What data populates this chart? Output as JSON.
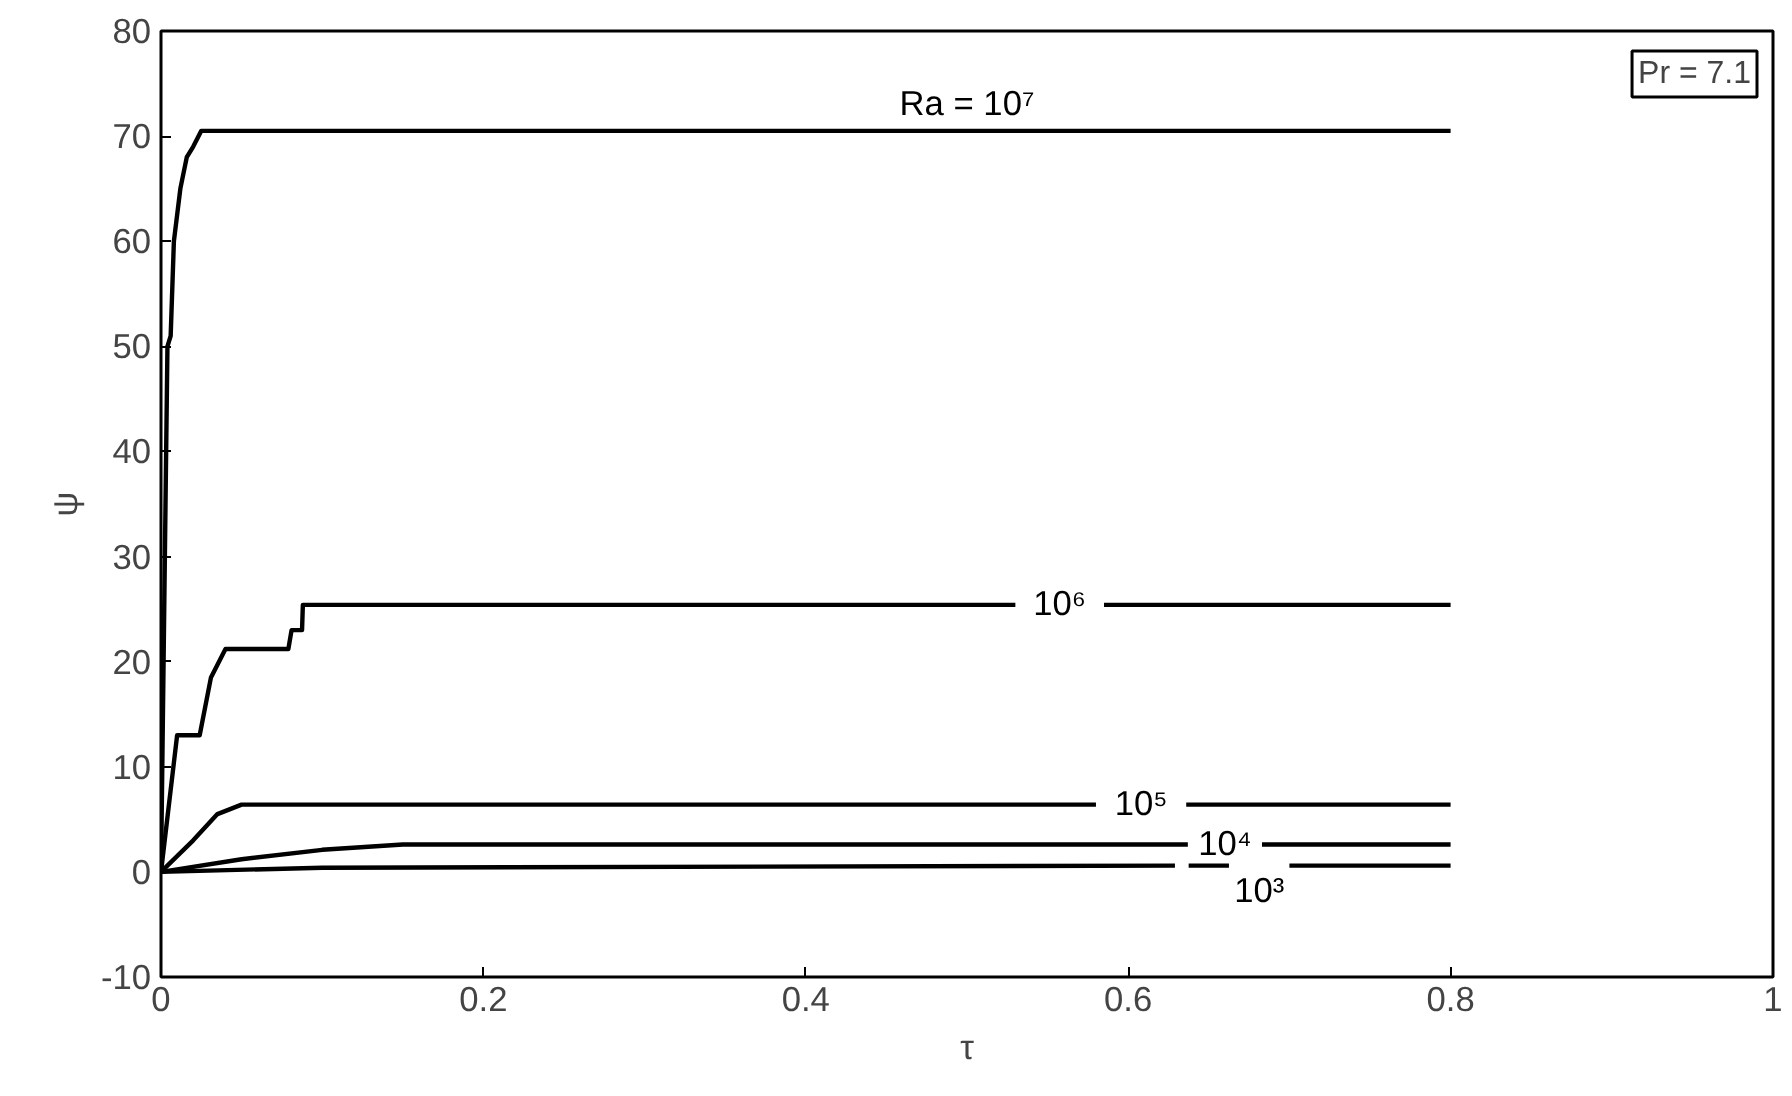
{
  "chart_data": {
    "type": "line",
    "xlabel": "τ",
    "ylabel": "ψ",
    "xlim": [
      0,
      1
    ],
    "ylim": [
      -10,
      80
    ],
    "xticks": [
      0,
      0.2,
      0.4,
      0.6,
      0.8,
      1
    ],
    "yticks": [
      -10,
      0,
      10,
      20,
      30,
      40,
      50,
      60,
      70,
      80
    ],
    "grid": false,
    "marker": "none",
    "line_style": "solid",
    "series": [
      {
        "name": "Ra = 10⁷",
        "color": "#000000",
        "x": [
          0,
          0.004,
          0.006,
          0.008,
          0.012,
          0.016,
          0.02,
          0.025,
          0.8
        ],
        "values": [
          0,
          50,
          51,
          60,
          65,
          68,
          69,
          70.5,
          70.5
        ]
      },
      {
        "name": "10⁶",
        "color": "#000000",
        "x": [
          0,
          0.01,
          0.024,
          0.031,
          0.04,
          0.079,
          0.081,
          0.0875,
          0.088,
          0.53,
          0.555,
          0.585,
          0.8
        ],
        "values": [
          0,
          13,
          13,
          18.5,
          21.2,
          21.2,
          23,
          23,
          25.4,
          25.4,
          null,
          25.4,
          25.4
        ]
      },
      {
        "name": "10⁵",
        "color": "#000000",
        "x": [
          0,
          0.02,
          0.035,
          0.05,
          0.58,
          0.61,
          0.636,
          0.8
        ],
        "values": [
          0,
          3,
          5.5,
          6.4,
          6.4,
          null,
          6.4,
          6.4
        ]
      },
      {
        "name": "10⁴",
        "color": "#000000",
        "x": [
          0,
          0.05,
          0.1,
          0.15,
          0.637,
          0.66,
          0.683,
          0.8
        ],
        "values": [
          0,
          1.2,
          2.1,
          2.6,
          2.6,
          null,
          2.6,
          2.6
        ]
      },
      {
        "name": "10³",
        "color": "#000000",
        "x": [
          0,
          0.1,
          0.629,
          0.633,
          0.6375,
          0.6625,
          0.68,
          0.7,
          0.8
        ],
        "values": [
          0,
          0.4,
          0.6,
          null,
          0.6,
          0.6,
          null,
          0.6,
          0.6
        ]
      }
    ],
    "annotations": [
      "Pr = 7.1"
    ]
  }
}
